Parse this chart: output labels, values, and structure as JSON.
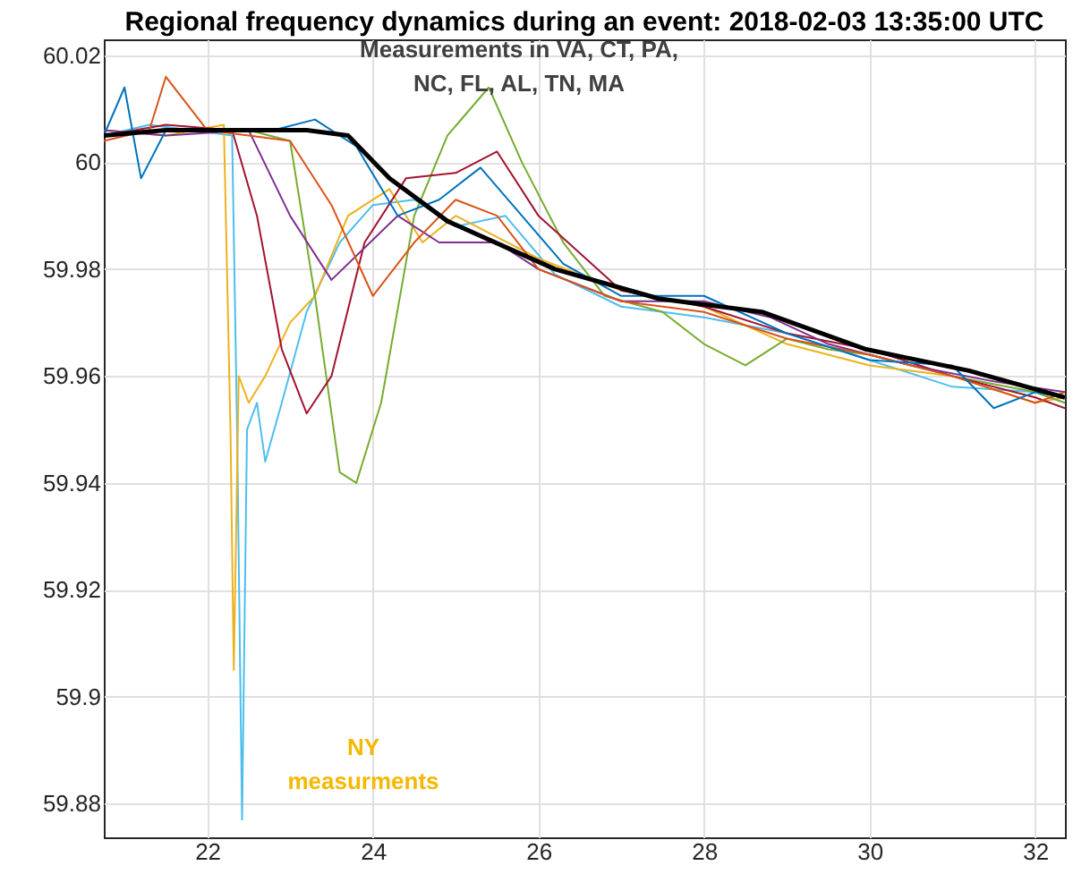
{
  "chart_data": {
    "type": "line",
    "title": "Regional frequency dynamics during an event: 2018-02-03 13:35:00 UTC",
    "xlim": [
      20.75,
      32.36
    ],
    "xticks": [
      22,
      24,
      26,
      28,
      30,
      32
    ],
    "ylim": [
      59.8737,
      60.023
    ],
    "yticks": [
      59.88,
      59.9,
      59.92,
      59.94,
      59.96,
      59.98,
      60,
      60.02
    ],
    "grid": true,
    "line_style": "solid",
    "marker": "none",
    "annotations": [
      "Measurements in VA, CT, PA, NC, FL, AL, TN, MA",
      "NY measurments"
    ],
    "series": [
      {
        "color": "#4dbeee",
        "x": [
          20.75,
          21.3,
          21.8,
          22.3,
          22.36,
          22.42,
          22.48,
          22.6,
          22.7,
          22.9,
          23.2,
          23.6,
          24.0,
          24.5,
          25.0,
          25.6,
          26.2,
          27,
          28,
          29,
          30,
          31,
          32,
          32.36
        ],
        "values": [
          60.005,
          60.007,
          60.006,
          60.005,
          59.95,
          59.877,
          59.95,
          59.955,
          59.944,
          59.955,
          59.972,
          59.985,
          59.992,
          59.993,
          59.988,
          59.99,
          59.979,
          59.973,
          59.971,
          59.968,
          59.963,
          59.958,
          59.957,
          59.955
        ]
      },
      {
        "color": "#edb120",
        "x": [
          20.75,
          21.5,
          22.2,
          22.28,
          22.32,
          22.38,
          22.5,
          22.7,
          23.0,
          23.3,
          23.7,
          24.2,
          24.6,
          25,
          26,
          27,
          28,
          29,
          30,
          31,
          32,
          32.36
        ],
        "values": [
          60.006,
          60.005,
          60.007,
          59.95,
          59.905,
          59.96,
          59.955,
          59.96,
          59.97,
          59.975,
          59.99,
          59.995,
          59.985,
          59.99,
          59.982,
          59.976,
          59.973,
          59.966,
          59.962,
          59.96,
          59.955,
          59.956
        ]
      },
      {
        "color": "#77ac30",
        "x": [
          20.75,
          21.5,
          22.5,
          23.0,
          23.3,
          23.6,
          23.8,
          24.1,
          24.5,
          24.9,
          25.4,
          25.8,
          26.3,
          26.8,
          27.5,
          28,
          28.5,
          29,
          29.5,
          30,
          31,
          32,
          32.36
        ],
        "values": [
          60.005,
          60.006,
          60.006,
          60.004,
          59.975,
          59.942,
          59.94,
          59.955,
          59.99,
          60.005,
          60.014,
          60.0,
          59.985,
          59.975,
          59.972,
          59.966,
          59.962,
          59.967,
          59.965,
          59.964,
          59.96,
          59.957,
          59.955
        ]
      },
      {
        "color": "#a2142f",
        "x": [
          20.75,
          21.5,
          22.3,
          22.6,
          22.9,
          23.2,
          23.5,
          23.9,
          24.4,
          25,
          25.5,
          26,
          27,
          28,
          29,
          30,
          31,
          32,
          32.36
        ],
        "values": [
          60.005,
          60.007,
          60.006,
          59.99,
          59.965,
          59.953,
          59.96,
          59.985,
          59.997,
          59.998,
          60.002,
          59.99,
          59.976,
          59.973,
          59.968,
          59.965,
          59.96,
          59.956,
          59.954
        ]
      },
      {
        "color": "#7e2f8e",
        "x": [
          20.75,
          21.5,
          22.5,
          23.0,
          23.5,
          23.9,
          24.3,
          24.8,
          25.5,
          26,
          27,
          28,
          28.8,
          29.5,
          30.5,
          31.5,
          32.36
        ],
        "values": [
          60.006,
          60.005,
          60.006,
          59.99,
          59.978,
          59.984,
          59.99,
          59.985,
          59.985,
          59.98,
          59.974,
          59.974,
          59.971,
          59.966,
          59.962,
          59.959,
          59.957
        ]
      },
      {
        "color": "#d95319",
        "x": [
          20.75,
          21.3,
          21.5,
          22,
          22.5,
          23,
          23.5,
          24,
          24.5,
          25,
          25.5,
          26,
          27,
          28,
          29,
          30,
          31,
          32,
          32.36
        ],
        "values": [
          60.004,
          60.006,
          60.016,
          60.006,
          60.005,
          60.004,
          59.992,
          59.975,
          59.985,
          59.993,
          59.99,
          59.98,
          59.974,
          59.972,
          59.967,
          59.964,
          59.96,
          59.955,
          59.957
        ]
      },
      {
        "color": "#0072bd",
        "x": [
          20.75,
          21.0,
          21.2,
          21.5,
          22.1,
          22.8,
          23.3,
          23.8,
          24.3,
          24.8,
          25.3,
          25.8,
          26.3,
          27,
          28,
          29,
          30,
          31,
          31.5,
          32,
          32.36
        ],
        "values": [
          60.005,
          60.014,
          59.997,
          60.006,
          60.006,
          60.006,
          60.008,
          60.003,
          59.99,
          59.993,
          59.999,
          59.99,
          59.981,
          59.975,
          59.975,
          59.968,
          59.963,
          59.962,
          59.954,
          59.957,
          59.956
        ]
      },
      {
        "color": "#000000",
        "x": [
          20.75,
          21.5,
          22.5,
          23.2,
          23.7,
          24.2,
          24.9,
          26.2,
          27.45,
          28.7,
          29.96,
          31.2,
          32.36
        ],
        "values": [
          60.005,
          60.006,
          60.006,
          60.006,
          60.005,
          59.997,
          59.989,
          59.98,
          59.9745,
          59.972,
          59.965,
          59.961,
          59.956
        ]
      }
    ]
  }
}
